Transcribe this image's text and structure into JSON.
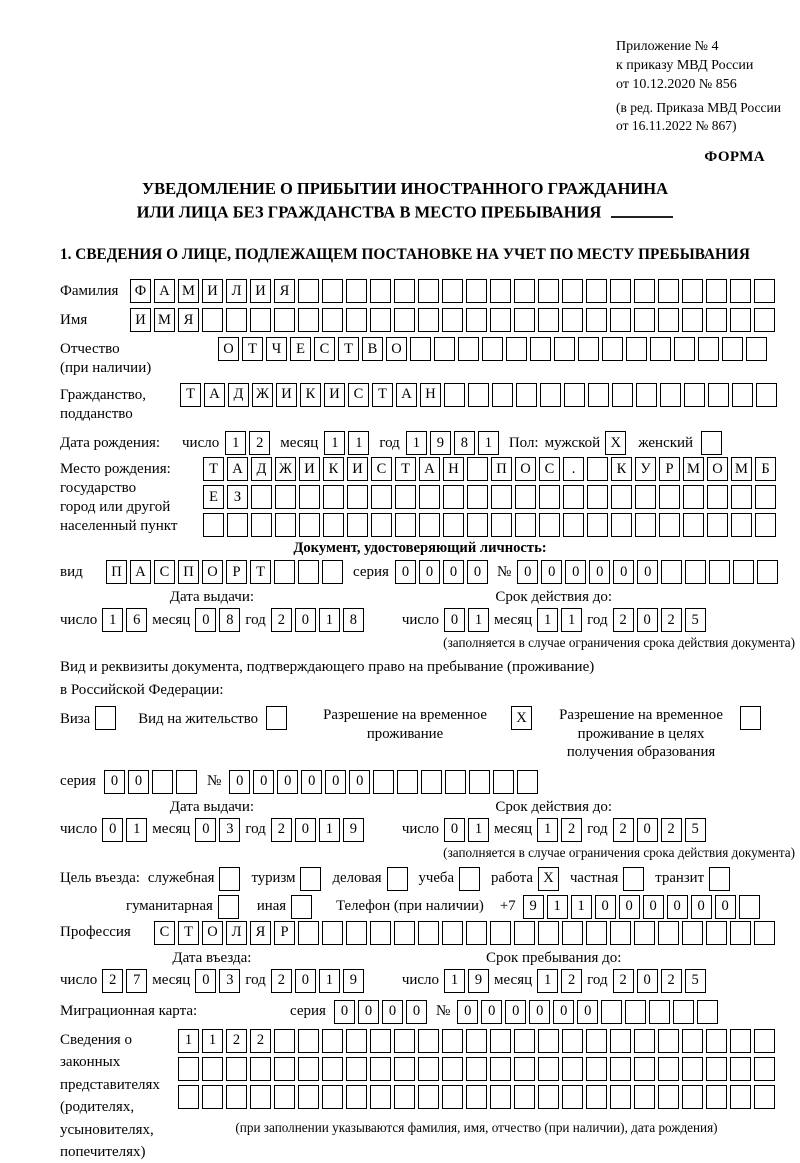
{
  "appendix": {
    "line1": "Приложение № 4",
    "line2": "к приказу МВД России",
    "line3": "от 10.12.2020 № 856",
    "line4": "(в ред. Приказа МВД России",
    "line5": "от 16.11.2022 № 867)"
  },
  "form_label": "ФОРМА",
  "title": {
    "line1": "УВЕДОМЛЕНИЕ О ПРИБЫТИИ ИНОСТРАННОГО ГРАЖДАНИНА",
    "line2": "ИЛИ ЛИЦА БЕЗ ГРАЖДАНСТВА В МЕСТО ПРЕБЫВАНИЯ"
  },
  "section1_heading": "1. СВЕДЕНИЯ О ЛИЦЕ, ПОДЛЕЖАЩЕМ ПОСТАНОВКЕ НА УЧЕТ ПО МЕСТУ ПРЕБЫВАНИЯ",
  "labels": {
    "day": "число",
    "month": "месяц",
    "year": "год",
    "series": "серия",
    "number": "№",
    "doc_type": "вид",
    "sex": "Пол:",
    "male": "мужской",
    "female": "женский",
    "phone_prefix": "+7"
  },
  "fields": {
    "surname": {
      "label": "Фамилия",
      "value": "ФАМИЛИЯ",
      "count": 27
    },
    "firstname": {
      "label": "Имя",
      "value": "ИМЯ",
      "count": 27
    },
    "patronymic": {
      "label_l1": "Отчество",
      "label_l2": "(при наличии)",
      "value": "ОТЧЕСТВО",
      "count": 23
    },
    "citizenship": {
      "label_l1": "Гражданство,",
      "label_l2": "подданство",
      "value": "ТАДЖИКИСТАН",
      "count": 25
    },
    "birth_date": {
      "label": "Дата рождения:",
      "day": {
        "value": "12",
        "count": 2
      },
      "month": {
        "value": "11",
        "count": 2
      },
      "year": {
        "value": "1981",
        "count": 4
      }
    },
    "sex": {
      "male_checked": true,
      "female_checked": false
    },
    "birth_place": {
      "label_l1": "Место рождения:",
      "label_l2": "государство",
      "label_l3": "город или другой",
      "label_l4": "населенный пункт",
      "row1": {
        "value": "ТАДЖИКИСТАН ПОС. КУРМОМБ",
        "count": 24
      },
      "row2": {
        "value": "ЕЗ",
        "count": 24
      },
      "row3": {
        "value": "",
        "count": 24
      }
    }
  },
  "identity_doc": {
    "header": "Документ, удостоверяющий личность:",
    "type": {
      "value": "ПАСПОРТ",
      "count": 10
    },
    "series": {
      "value": "0000",
      "count": 4
    },
    "number": {
      "value": "000000",
      "count": 11
    },
    "issue": {
      "title": "Дата выдачи:",
      "day": {
        "value": "16",
        "count": 2
      },
      "month": {
        "value": "08",
        "count": 2
      },
      "year": {
        "value": "2018",
        "count": 4
      }
    },
    "valid": {
      "title": "Срок действия до:",
      "day": {
        "value": "01",
        "count": 2
      },
      "month": {
        "value": "11",
        "count": 2
      },
      "year": {
        "value": "2025",
        "count": 4
      }
    },
    "note": "(заполняется в случае ограничения срока действия документа)"
  },
  "residence_doc": {
    "line1": "Вид и реквизиты документа, подтверждающего право на пребывание (проживание)",
    "line2": "в Российской Федерации:",
    "options": [
      {
        "label": "Виза",
        "checked": false
      },
      {
        "label": "Вид на жительство",
        "checked": false
      },
      {
        "label": "Разрешение на временное проживание",
        "checked": true
      },
      {
        "label": "Разрешение на временное проживание в целях получения образования",
        "checked": false
      }
    ],
    "series": {
      "value": "00",
      "count": 4
    },
    "number": {
      "value": "000000",
      "count": 13
    },
    "issue": {
      "title": "Дата выдачи:",
      "day": {
        "value": "01",
        "count": 2
      },
      "month": {
        "value": "03",
        "count": 2
      },
      "year": {
        "value": "2019",
        "count": 4
      }
    },
    "valid": {
      "title": "Срок действия до:",
      "day": {
        "value": "01",
        "count": 2
      },
      "month": {
        "value": "12",
        "count": 2
      },
      "year": {
        "value": "2025",
        "count": 4
      }
    },
    "note": "(заполняется в случае ограничения срока действия документа)"
  },
  "purpose": {
    "label": "Цель въезда:",
    "row1": [
      {
        "label": "служебная",
        "checked": false
      },
      {
        "label": "туризм",
        "checked": false
      },
      {
        "label": "деловая",
        "checked": false
      },
      {
        "label": "учеба",
        "checked": false
      },
      {
        "label": "работа",
        "checked": true
      },
      {
        "label": "частная",
        "checked": false
      },
      {
        "label": "транзит",
        "checked": false
      }
    ],
    "row2": [
      {
        "label": "гуманитарная",
        "checked": false
      },
      {
        "label": "иная",
        "checked": false
      }
    ],
    "phone_label": "Телефон (при наличии)",
    "phone": {
      "value": "911000000",
      "count": 10
    }
  },
  "profession": {
    "label": "Профессия",
    "value": "СТОЛЯР",
    "count": 26
  },
  "entry": {
    "issue": {
      "title": "Дата въезда:",
      "day": {
        "value": "27",
        "count": 2
      },
      "month": {
        "value": "03",
        "count": 2
      },
      "year": {
        "value": "2019",
        "count": 4
      }
    },
    "valid": {
      "title": "Срок пребывания до:",
      "day": {
        "value": "19",
        "count": 2
      },
      "month": {
        "value": "12",
        "count": 2
      },
      "year": {
        "value": "2025",
        "count": 4
      }
    }
  },
  "migration_card": {
    "label": "Миграционная карта:",
    "series": {
      "value": "0000",
      "count": 4
    },
    "number": {
      "value": "000000",
      "count": 11
    }
  },
  "representatives": {
    "label_lines": [
      "Сведения о",
      "законных",
      "представителях",
      "(родителях,",
      "усыновителях,",
      "попечителях)"
    ],
    "row1": {
      "value": "1122",
      "count": 25
    },
    "row2": {
      "value": "",
      "count": 25
    },
    "row3": {
      "value": "",
      "count": 25
    },
    "note": "(при заполнении указываются фамилия, имя, отчество (при наличии), дата рождения)"
  }
}
